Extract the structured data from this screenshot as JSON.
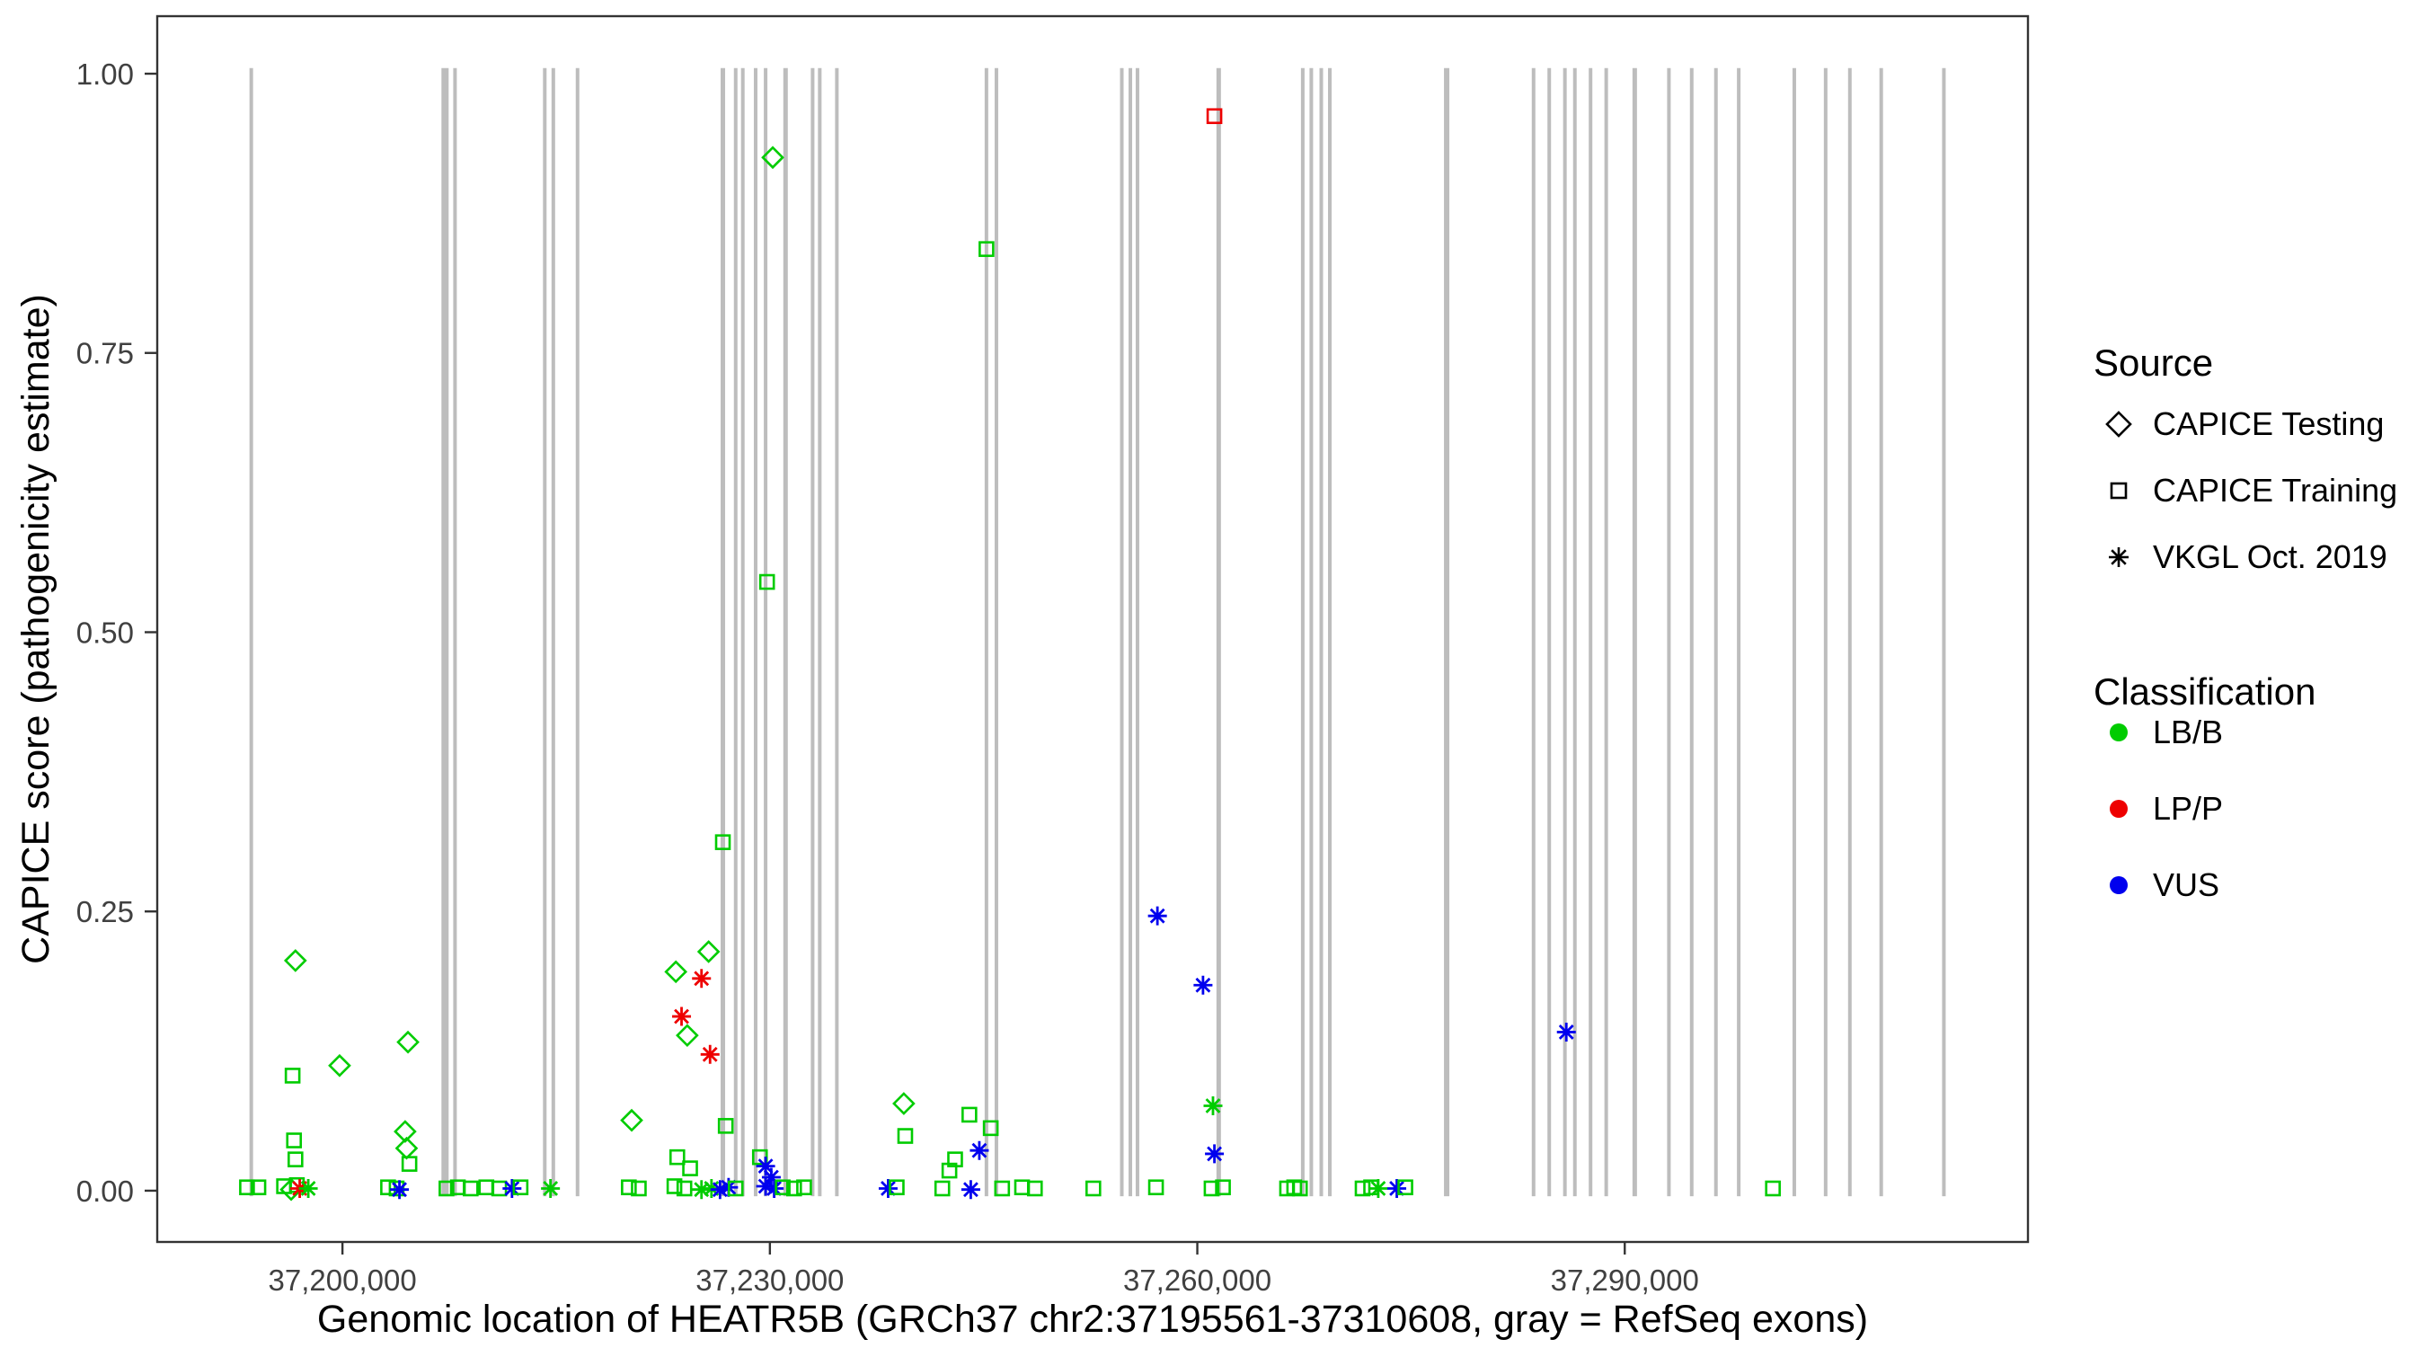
{
  "legend": {
    "source_title": "Source",
    "classification_title": "Classification"
  },
  "chart_data": {
    "type": "scatter",
    "xlabel": "Genomic location of HEATR5B (GRCh37 chr2:37195561-37310608, gray = RefSeq exons)",
    "ylabel": "CAPICE score (pathogenicity estimate)",
    "xlim": [
      37187000,
      37318300
    ],
    "ylim": [
      -0.0459,
      1.0515
    ],
    "grid": "off",
    "legend_position": "right",
    "x_ticks": [
      {
        "value": 37200000,
        "label": "37,200,000"
      },
      {
        "value": 37230000,
        "label": "37,230,000"
      },
      {
        "value": 37260000,
        "label": "37,260,000"
      },
      {
        "value": 37290000,
        "label": "37,290,000"
      }
    ],
    "y_ticks": [
      {
        "value": 0.0,
        "label": "0.00"
      },
      {
        "value": 0.25,
        "label": "0.25"
      },
      {
        "value": 0.5,
        "label": "0.50"
      },
      {
        "value": 0.75,
        "label": "0.75"
      },
      {
        "value": 1.0,
        "label": "1.00"
      }
    ],
    "exon_color": "#BDBDBD",
    "exons": [
      {
        "x": 37193600,
        "w": 4
      },
      {
        "x": 37207200,
        "w": 8
      },
      {
        "x": 37207900,
        "w": 4
      },
      {
        "x": 37214200,
        "w": 4
      },
      {
        "x": 37214800,
        "w": 4
      },
      {
        "x": 37216500,
        "w": 4
      },
      {
        "x": 37226700,
        "w": 5
      },
      {
        "x": 37227600,
        "w": 4
      },
      {
        "x": 37228100,
        "w": 4
      },
      {
        "x": 37229000,
        "w": 4
      },
      {
        "x": 37229700,
        "w": 4
      },
      {
        "x": 37231100,
        "w": 5
      },
      {
        "x": 37233000,
        "w": 4
      },
      {
        "x": 37233500,
        "w": 4
      },
      {
        "x": 37234700,
        "w": 4
      },
      {
        "x": 37245200,
        "w": 4
      },
      {
        "x": 37245900,
        "w": 4
      },
      {
        "x": 37254700,
        "w": 4
      },
      {
        "x": 37255300,
        "w": 4
      },
      {
        "x": 37255800,
        "w": 4
      },
      {
        "x": 37261500,
        "w": 5
      },
      {
        "x": 37267400,
        "w": 4
      },
      {
        "x": 37268000,
        "w": 4
      },
      {
        "x": 37268700,
        "w": 4
      },
      {
        "x": 37269300,
        "w": 4
      },
      {
        "x": 37277500,
        "w": 6
      },
      {
        "x": 37283600,
        "w": 4
      },
      {
        "x": 37284700,
        "w": 4
      },
      {
        "x": 37285800,
        "w": 4
      },
      {
        "x": 37286500,
        "w": 4
      },
      {
        "x": 37287600,
        "w": 4
      },
      {
        "x": 37288700,
        "w": 4
      },
      {
        "x": 37290700,
        "w": 5
      },
      {
        "x": 37293100,
        "w": 4
      },
      {
        "x": 37294700,
        "w": 4
      },
      {
        "x": 37296400,
        "w": 4
      },
      {
        "x": 37298000,
        "w": 4
      },
      {
        "x": 37301900,
        "w": 4
      },
      {
        "x": 37304100,
        "w": 4
      },
      {
        "x": 37305800,
        "w": 4
      },
      {
        "x": 37308000,
        "w": 4
      },
      {
        "x": 37312400,
        "w": 4
      }
    ],
    "sources": [
      {
        "id": "testing",
        "label": "CAPICE Testing",
        "marker": "diamond"
      },
      {
        "id": "training",
        "label": "CAPICE Training",
        "marker": "square"
      },
      {
        "id": "vkgl",
        "label": "VKGL Oct. 2019",
        "marker": "asterisk"
      }
    ],
    "classes": [
      {
        "id": "LB",
        "label": "LB/B",
        "color": "#00CC00"
      },
      {
        "id": "LP",
        "label": "LP/P",
        "color": "#EE0000"
      },
      {
        "id": "VUS",
        "label": "VUS",
        "color": "#0000EE"
      }
    ],
    "points": [
      {
        "x": 37230200,
        "y": 0.925,
        "src": "testing",
        "cls": "LB"
      },
      {
        "x": 37261200,
        "y": 0.962,
        "src": "training",
        "cls": "LP"
      },
      {
        "x": 37245200,
        "y": 0.843,
        "src": "training",
        "cls": "LB"
      },
      {
        "x": 37229800,
        "y": 0.545,
        "src": "training",
        "cls": "LB"
      },
      {
        "x": 37226700,
        "y": 0.312,
        "src": "training",
        "cls": "LB"
      },
      {
        "x": 37257200,
        "y": 0.246,
        "src": "vkgl",
        "cls": "VUS"
      },
      {
        "x": 37260400,
        "y": 0.184,
        "src": "vkgl",
        "cls": "VUS"
      },
      {
        "x": 37196700,
        "y": 0.206,
        "src": "testing",
        "cls": "LB"
      },
      {
        "x": 37223400,
        "y": 0.196,
        "src": "testing",
        "cls": "LB"
      },
      {
        "x": 37225700,
        "y": 0.214,
        "src": "testing",
        "cls": "LB"
      },
      {
        "x": 37225200,
        "y": 0.19,
        "src": "vkgl",
        "cls": "LP"
      },
      {
        "x": 37223800,
        "y": 0.156,
        "src": "vkgl",
        "cls": "LP"
      },
      {
        "x": 37224200,
        "y": 0.139,
        "src": "testing",
        "cls": "LB"
      },
      {
        "x": 37225800,
        "y": 0.122,
        "src": "vkgl",
        "cls": "LP"
      },
      {
        "x": 37199800,
        "y": 0.112,
        "src": "testing",
        "cls": "LB"
      },
      {
        "x": 37204600,
        "y": 0.133,
        "src": "testing",
        "cls": "LB"
      },
      {
        "x": 37196500,
        "y": 0.103,
        "src": "training",
        "cls": "LB"
      },
      {
        "x": 37285900,
        "y": 0.142,
        "src": "vkgl",
        "cls": "VUS"
      },
      {
        "x": 37261100,
        "y": 0.076,
        "src": "vkgl",
        "cls": "LB"
      },
      {
        "x": 37261200,
        "y": 0.033,
        "src": "vkgl",
        "cls": "VUS"
      },
      {
        "x": 37239400,
        "y": 0.078,
        "src": "testing",
        "cls": "LB"
      },
      {
        "x": 37239500,
        "y": 0.049,
        "src": "training",
        "cls": "LB"
      },
      {
        "x": 37244000,
        "y": 0.068,
        "src": "training",
        "cls": "LB"
      },
      {
        "x": 37245500,
        "y": 0.056,
        "src": "training",
        "cls": "LB"
      },
      {
        "x": 37220300,
        "y": 0.063,
        "src": "testing",
        "cls": "LB"
      },
      {
        "x": 37226900,
        "y": 0.058,
        "src": "training",
        "cls": "LB"
      },
      {
        "x": 37204400,
        "y": 0.053,
        "src": "testing",
        "cls": "LB"
      },
      {
        "x": 37204500,
        "y": 0.038,
        "src": "testing",
        "cls": "LB"
      },
      {
        "x": 37196600,
        "y": 0.045,
        "src": "training",
        "cls": "LB"
      },
      {
        "x": 37196700,
        "y": 0.028,
        "src": "training",
        "cls": "LB"
      },
      {
        "x": 37204700,
        "y": 0.024,
        "src": "training",
        "cls": "LB"
      },
      {
        "x": 37223500,
        "y": 0.03,
        "src": "training",
        "cls": "LB"
      },
      {
        "x": 37224400,
        "y": 0.02,
        "src": "training",
        "cls": "LB"
      },
      {
        "x": 37229300,
        "y": 0.03,
        "src": "training",
        "cls": "LB"
      },
      {
        "x": 37229700,
        "y": 0.022,
        "src": "vkgl",
        "cls": "VUS"
      },
      {
        "x": 37230100,
        "y": 0.012,
        "src": "vkgl",
        "cls": "VUS"
      },
      {
        "x": 37243000,
        "y": 0.028,
        "src": "training",
        "cls": "LB"
      },
      {
        "x": 37242600,
        "y": 0.018,
        "src": "training",
        "cls": "LB"
      },
      {
        "x": 37244700,
        "y": 0.036,
        "src": "vkgl",
        "cls": "VUS"
      },
      {
        "x": 37193300,
        "y": 0.003,
        "src": "training",
        "cls": "LB"
      },
      {
        "x": 37194100,
        "y": 0.003,
        "src": "training",
        "cls": "LB"
      },
      {
        "x": 37195900,
        "y": 0.004,
        "src": "training",
        "cls": "LB"
      },
      {
        "x": 37196400,
        "y": 0.001,
        "src": "testing",
        "cls": "LB"
      },
      {
        "x": 37196800,
        "y": 0.005,
        "src": "training",
        "cls": "LB"
      },
      {
        "x": 37197000,
        "y": 0.002,
        "src": "vkgl",
        "cls": "LP"
      },
      {
        "x": 37197600,
        "y": 0.002,
        "src": "vkgl",
        "cls": "LB"
      },
      {
        "x": 37203200,
        "y": 0.003,
        "src": "training",
        "cls": "LB"
      },
      {
        "x": 37203800,
        "y": 0.002,
        "src": "training",
        "cls": "LB"
      },
      {
        "x": 37204000,
        "y": 0.001,
        "src": "vkgl",
        "cls": "VUS"
      },
      {
        "x": 37207300,
        "y": 0.002,
        "src": "training",
        "cls": "LB"
      },
      {
        "x": 37208100,
        "y": 0.003,
        "src": "training",
        "cls": "LB"
      },
      {
        "x": 37209000,
        "y": 0.002,
        "src": "training",
        "cls": "LB"
      },
      {
        "x": 37210100,
        "y": 0.003,
        "src": "training",
        "cls": "LB"
      },
      {
        "x": 37211000,
        "y": 0.002,
        "src": "training",
        "cls": "LB"
      },
      {
        "x": 37211900,
        "y": 0.002,
        "src": "vkgl",
        "cls": "VUS"
      },
      {
        "x": 37212500,
        "y": 0.003,
        "src": "training",
        "cls": "LB"
      },
      {
        "x": 37214600,
        "y": 0.002,
        "src": "vkgl",
        "cls": "LB"
      },
      {
        "x": 37220100,
        "y": 0.003,
        "src": "training",
        "cls": "LB"
      },
      {
        "x": 37220800,
        "y": 0.002,
        "src": "training",
        "cls": "LB"
      },
      {
        "x": 37223300,
        "y": 0.004,
        "src": "training",
        "cls": "LB"
      },
      {
        "x": 37224000,
        "y": 0.002,
        "src": "training",
        "cls": "LB"
      },
      {
        "x": 37225200,
        "y": 0.001,
        "src": "vkgl",
        "cls": "LB"
      },
      {
        "x": 37225900,
        "y": 0.002,
        "src": "vkgl",
        "cls": "LB"
      },
      {
        "x": 37226500,
        "y": 0.001,
        "src": "vkgl",
        "cls": "VUS"
      },
      {
        "x": 37227100,
        "y": 0.003,
        "src": "vkgl",
        "cls": "VUS"
      },
      {
        "x": 37227600,
        "y": 0.002,
        "src": "training",
        "cls": "LB"
      },
      {
        "x": 37229700,
        "y": 0.004,
        "src": "vkgl",
        "cls": "VUS"
      },
      {
        "x": 37230300,
        "y": 0.002,
        "src": "vkgl",
        "cls": "VUS"
      },
      {
        "x": 37230900,
        "y": 0.003,
        "src": "training",
        "cls": "LB"
      },
      {
        "x": 37231700,
        "y": 0.002,
        "src": "training",
        "cls": "LB"
      },
      {
        "x": 37232400,
        "y": 0.003,
        "src": "training",
        "cls": "LB"
      },
      {
        "x": 37238300,
        "y": 0.002,
        "src": "vkgl",
        "cls": "VUS"
      },
      {
        "x": 37238900,
        "y": 0.003,
        "src": "training",
        "cls": "LB"
      },
      {
        "x": 37242100,
        "y": 0.002,
        "src": "training",
        "cls": "LB"
      },
      {
        "x": 37244100,
        "y": 0.001,
        "src": "vkgl",
        "cls": "VUS"
      },
      {
        "x": 37246300,
        "y": 0.002,
        "src": "training",
        "cls": "LB"
      },
      {
        "x": 37247700,
        "y": 0.003,
        "src": "training",
        "cls": "LB"
      },
      {
        "x": 37248600,
        "y": 0.002,
        "src": "training",
        "cls": "LB"
      },
      {
        "x": 37252700,
        "y": 0.002,
        "src": "training",
        "cls": "LB"
      },
      {
        "x": 37257100,
        "y": 0.003,
        "src": "training",
        "cls": "LB"
      },
      {
        "x": 37261000,
        "y": 0.002,
        "src": "training",
        "cls": "LB"
      },
      {
        "x": 37261800,
        "y": 0.003,
        "src": "training",
        "cls": "LB"
      },
      {
        "x": 37266300,
        "y": 0.002,
        "src": "training",
        "cls": "LB"
      },
      {
        "x": 37266800,
        "y": 0.003,
        "src": "training",
        "cls": "LB"
      },
      {
        "x": 37267200,
        "y": 0.002,
        "src": "training",
        "cls": "LB"
      },
      {
        "x": 37271600,
        "y": 0.002,
        "src": "training",
        "cls": "LB"
      },
      {
        "x": 37272200,
        "y": 0.003,
        "src": "training",
        "cls": "LB"
      },
      {
        "x": 37272700,
        "y": 0.002,
        "src": "vkgl",
        "cls": "LB"
      },
      {
        "x": 37274000,
        "y": 0.002,
        "src": "vkgl",
        "cls": "VUS"
      },
      {
        "x": 37274600,
        "y": 0.003,
        "src": "training",
        "cls": "LB"
      },
      {
        "x": 37300400,
        "y": 0.002,
        "src": "training",
        "cls": "LB"
      }
    ]
  }
}
